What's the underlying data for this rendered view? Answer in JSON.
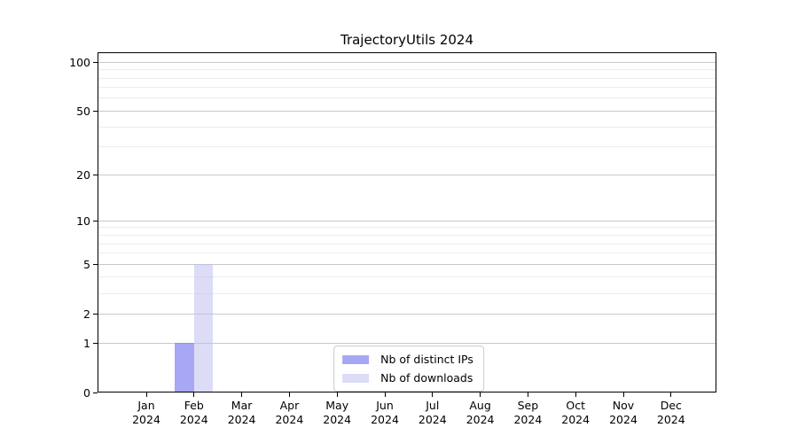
{
  "figure": {
    "background": "#ffffff"
  },
  "chart_data": {
    "type": "bar",
    "title": "TrajectoryUtils 2024",
    "xlabel": "",
    "ylabel": "",
    "categories": [
      {
        "month": "Jan",
        "year": "2024"
      },
      {
        "month": "Feb",
        "year": "2024"
      },
      {
        "month": "Mar",
        "year": "2024"
      },
      {
        "month": "Apr",
        "year": "2024"
      },
      {
        "month": "May",
        "year": "2024"
      },
      {
        "month": "Jun",
        "year": "2024"
      },
      {
        "month": "Jul",
        "year": "2024"
      },
      {
        "month": "Aug",
        "year": "2024"
      },
      {
        "month": "Sep",
        "year": "2024"
      },
      {
        "month": "Oct",
        "year": "2024"
      },
      {
        "month": "Nov",
        "year": "2024"
      },
      {
        "month": "Dec",
        "year": "2024"
      }
    ],
    "series": [
      {
        "name": "Nb of distinct IPs",
        "color": "#7878f0",
        "alpha": 0.65,
        "values": [
          0,
          1,
          0,
          0,
          0,
          0,
          0,
          0,
          0,
          0,
          0,
          0
        ]
      },
      {
        "name": "Nb of downloads",
        "color": "#b9b9f0",
        "alpha": 0.5,
        "values": [
          0,
          5,
          0,
          0,
          0,
          0,
          0,
          0,
          0,
          0,
          0,
          0
        ]
      }
    ],
    "yscale": "log1p",
    "ylim": [
      0,
      115
    ],
    "y_major_ticks": [
      0,
      1,
      2,
      5,
      10,
      20,
      50,
      100
    ],
    "y_minor_ticks": [
      3,
      4,
      6,
      7,
      8,
      9,
      30,
      40,
      60,
      70,
      80,
      90
    ],
    "grid": true,
    "legend_position": "lower center"
  },
  "colors": {
    "grid_major": "#c8c8c8",
    "grid_minor": "#ececec",
    "spine": "#000000",
    "legend_border": "#cccccc"
  }
}
